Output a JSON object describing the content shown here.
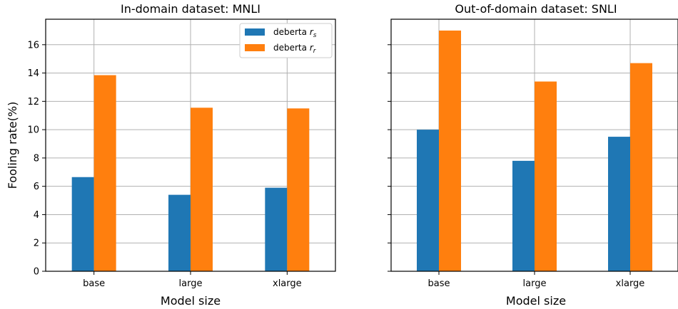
{
  "chart_data": [
    {
      "type": "bar",
      "title": "In-domain dataset: MNLI",
      "xlabel": "Model size",
      "ylabel": "Fooling rate(%)",
      "categories": [
        "base",
        "large",
        "xlarge"
      ],
      "ylim": [
        0,
        17.8
      ],
      "yticks": [
        0,
        2,
        4,
        6,
        8,
        10,
        12,
        14,
        16
      ],
      "grid": true,
      "legend": "top-right",
      "series": [
        {
          "name": "deberta r_s",
          "color": "#1f77b4",
          "values": [
            6.65,
            5.4,
            5.9
          ]
        },
        {
          "name": "deberta r_r",
          "color": "#ff7f0e",
          "values": [
            13.85,
            11.55,
            11.5
          ]
        }
      ]
    },
    {
      "type": "bar",
      "title": "Out-of-domain dataset: SNLI",
      "xlabel": "Model size",
      "ylabel": "",
      "categories": [
        "base",
        "large",
        "xlarge"
      ],
      "ylim": [
        0,
        17.8
      ],
      "yticks": [
        0,
        2,
        4,
        6,
        8,
        10,
        12,
        14,
        16
      ],
      "grid": true,
      "series": [
        {
          "name": "deberta r_s",
          "color": "#1f77b4",
          "values": [
            10.0,
            7.8,
            9.5
          ]
        },
        {
          "name": "deberta r_r",
          "color": "#ff7f0e",
          "values": [
            17.0,
            13.4,
            14.7
          ]
        }
      ]
    }
  ]
}
